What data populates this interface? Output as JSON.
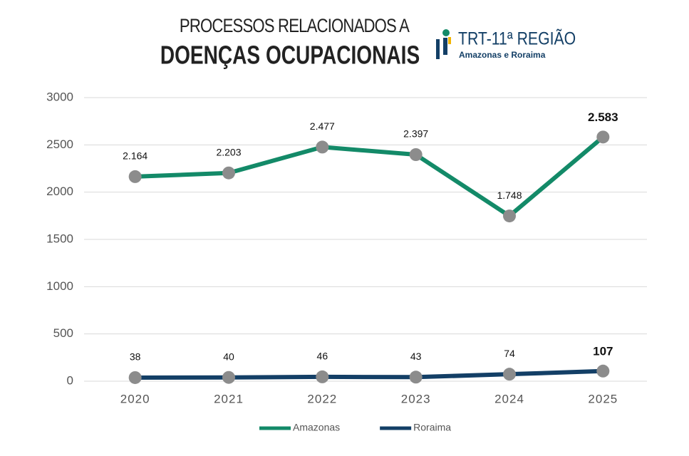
{
  "chart_data": {
    "type": "line",
    "title": "DOENÇAS OCUPACIONAIS",
    "subtitle": "PROCESSOS RELACIONADOS A",
    "categories": [
      "2020",
      "2021",
      "2022",
      "2023",
      "2024",
      "2025"
    ],
    "series": [
      {
        "name": "Amazonas",
        "color": "#138a68",
        "values": [
          2164,
          2203,
          2477,
          2397,
          1748,
          2583
        ],
        "value_labels": [
          "2.164",
          "2.203",
          "2.477",
          "2.397",
          "1.748",
          "2.583"
        ]
      },
      {
        "name": "Roraima",
        "color": "#133f66",
        "values": [
          38,
          40,
          46,
          43,
          74,
          107
        ],
        "value_labels": [
          "38",
          "40",
          "46",
          "43",
          "74",
          "107"
        ]
      }
    ],
    "ylim": [
      0,
      3000
    ],
    "yticks": [
      0,
      500,
      1000,
      1500,
      2000,
      2500,
      3000
    ],
    "grid": true,
    "marker_color": "#8c8c8c",
    "legend": "bottom"
  },
  "logo": {
    "title": "TRT-11ª REGIÃO",
    "subtitle": "Amazonas e Roraima"
  }
}
